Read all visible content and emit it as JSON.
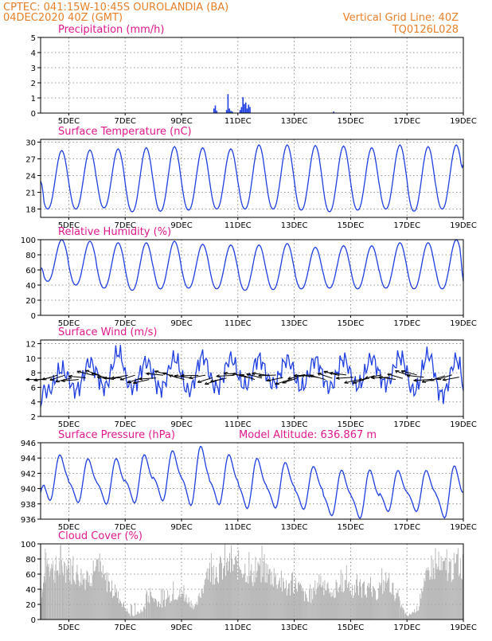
{
  "header": {
    "line1": "CPTEC:   041:15W-10:45S   OUROLANDIA (BA)",
    "line2": "04DEC2020 40Z (GMT)",
    "right1": "Vertical Grid Line: 40Z",
    "right2": "TQ0126L028"
  },
  "colors": {
    "header": "#e8802a",
    "title": "#e0188c",
    "line": "#1f3fe0",
    "bar": "#1f3fe0",
    "cloud": "#a9a9a9",
    "vector": "#000000"
  },
  "x_axis": {
    "start_day": 4,
    "end_day": 19,
    "ticks": [
      5,
      7,
      9,
      11,
      13,
      15,
      17,
      19
    ],
    "labels": [
      "5DEC",
      "7DEC",
      "9DEC",
      "11DEC",
      "13DEC",
      "15DEC",
      "17DEC",
      "19DEC"
    ]
  },
  "model_altitude": "Model Altitude: 636.867 m",
  "chart_data": [
    {
      "id": "precipitation",
      "type": "bar",
      "title": "Precipitation (mm/h)",
      "ylim": [
        0,
        5
      ],
      "yticks": [
        0,
        1,
        2,
        3,
        4,
        5
      ],
      "grid": true,
      "x": [
        10.15,
        10.2,
        10.25,
        10.6,
        10.65,
        10.7,
        10.75,
        10.8,
        11.08,
        11.13,
        11.18,
        11.23,
        11.28,
        11.33,
        11.38,
        11.43,
        14.4
      ],
      "values": [
        0.3,
        0.5,
        0.15,
        0.2,
        1.25,
        0.3,
        0.15,
        0.1,
        0.2,
        0.4,
        1.05,
        0.6,
        0.7,
        0.3,
        0.55,
        0.4,
        0.1
      ]
    },
    {
      "id": "temperature",
      "type": "line",
      "title": "Surface Temperature (nC)",
      "ylim": [
        16.5,
        30.5
      ],
      "yticks": [
        18,
        21,
        24,
        27,
        30
      ],
      "grid": true,
      "min_values": [
        18,
        18,
        18.2,
        17.5,
        17.6,
        17.8,
        18,
        18,
        18,
        17.8,
        17.5,
        17.8,
        18,
        17.6,
        18
      ],
      "max_values": [
        28.5,
        28.6,
        28.8,
        29,
        29.2,
        29,
        28.8,
        29.5,
        29.5,
        29.4,
        29.3,
        29,
        29.5,
        29.2,
        29.5
      ],
      "start_value": 23,
      "end_value": 26
    },
    {
      "id": "humidity",
      "type": "line",
      "title": "Relative Humidity (%)",
      "ylim": [
        0,
        100
      ],
      "yticks": [
        0,
        20,
        40,
        60,
        80,
        100
      ],
      "grid": true,
      "min_values": [
        45,
        40,
        36,
        33,
        35,
        36,
        35,
        33,
        34,
        35,
        36,
        35,
        36,
        35,
        35
      ],
      "max_values": [
        100,
        98,
        96,
        96,
        98,
        94,
        93,
        93,
        95,
        90,
        92,
        92,
        96,
        96,
        100
      ],
      "start_value": 62,
      "end_value": 45
    },
    {
      "id": "wind",
      "type": "line",
      "title": "Surface Wind (m/s)",
      "ylim": [
        2,
        12.5
      ],
      "yticks": [
        2,
        4,
        6,
        8,
        10,
        12
      ],
      "grid": true,
      "min_values": [
        5.5,
        5.6,
        6,
        6,
        5.8,
        5.5,
        6,
        6.2,
        6.5,
        6,
        6,
        6.2,
        6.5,
        5.5,
        5
      ],
      "max_values": [
        8.5,
        9.5,
        10.8,
        9.5,
        10,
        10.3,
        10,
        10,
        9.8,
        9.8,
        9.9,
        10,
        10.2,
        10.5,
        9.8
      ],
      "start_value": 3.3,
      "end_value": 5.5,
      "vector_y": 7.4
    },
    {
      "id": "pressure",
      "type": "line",
      "title": "Surface Pressure (hPa)",
      "ylim": [
        936,
        946
      ],
      "yticks": [
        936,
        938,
        940,
        942,
        944,
        946
      ],
      "grid": true,
      "min_values": [
        939,
        938.7,
        938.5,
        938.7,
        939,
        938.5,
        938.5,
        938,
        938,
        937.8,
        937,
        936.7,
        937.5,
        937.5,
        936.8
      ],
      "max_values": [
        944,
        943.5,
        943.5,
        944,
        944.5,
        945,
        944,
        943.5,
        943,
        942.5,
        942,
        942,
        942,
        942,
        942.5
      ],
      "start_value": 939.5,
      "end_value": 939.5
    },
    {
      "id": "cloud",
      "type": "area",
      "title": "Cloud Cover (%)",
      "ylim": [
        0,
        100
      ],
      "yticks": [
        0,
        20,
        40,
        60,
        80,
        100
      ],
      "grid": true,
      "x": [
        4,
        4.2,
        4.5,
        4.8,
        5.2,
        5.6,
        6,
        6.4,
        6.8,
        7.2,
        7.6,
        7.9,
        8.3,
        8.7,
        9.1,
        9.5,
        9.9,
        10.3,
        10.7,
        11.1,
        11.5,
        11.9,
        12.3,
        12.7,
        13.1,
        13.5,
        13.9,
        14.3,
        14.7,
        15.1,
        15.5,
        15.9,
        16.3,
        16.7,
        17,
        17.4,
        17.8,
        18.2,
        18.6,
        19
      ],
      "values": [
        30,
        95,
        85,
        90,
        80,
        70,
        85,
        60,
        35,
        5,
        15,
        40,
        25,
        45,
        40,
        20,
        80,
        85,
        90,
        92,
        75,
        85,
        70,
        50,
        60,
        30,
        70,
        35,
        65,
        45,
        55,
        40,
        70,
        30,
        5,
        20,
        90,
        85,
        88,
        92
      ]
    }
  ]
}
